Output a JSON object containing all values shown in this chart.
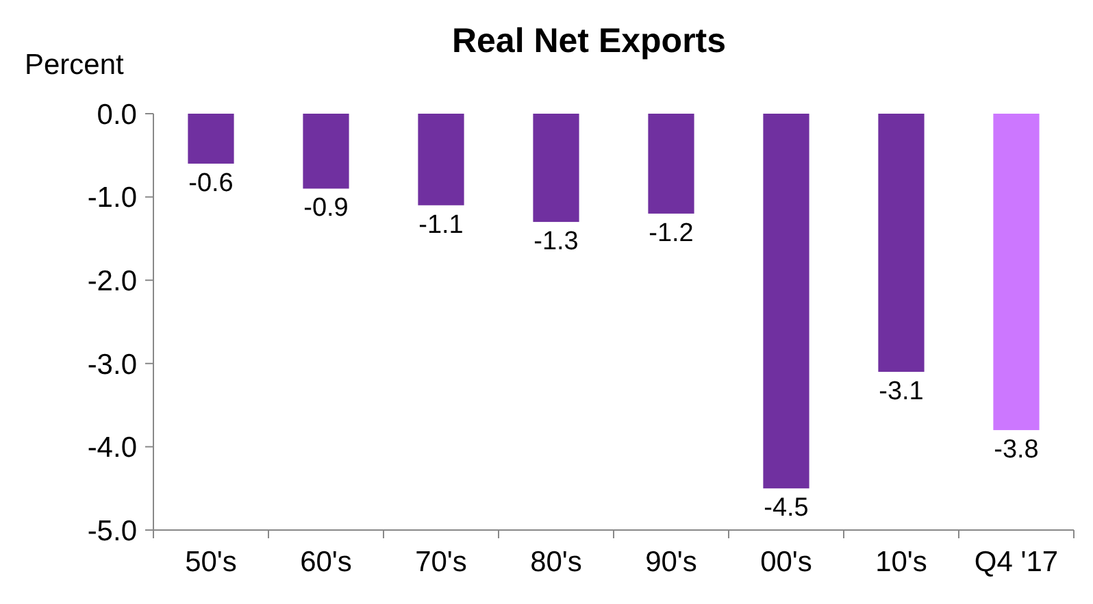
{
  "chart_data": {
    "type": "bar",
    "title": "Real Net Exports",
    "ylabel": "Percent",
    "categories": [
      "50's",
      "60's",
      "70's",
      "80's",
      "90's",
      "00's",
      "10's",
      "Q4 '17"
    ],
    "values": [
      -0.6,
      -0.9,
      -1.1,
      -1.3,
      -1.2,
      -4.5,
      -3.1,
      -3.8
    ],
    "colors": [
      "#7030a0",
      "#7030a0",
      "#7030a0",
      "#7030a0",
      "#7030a0",
      "#7030a0",
      "#7030a0",
      "#cc77ff"
    ],
    "ylim": [
      -5,
      0
    ],
    "yticks": [
      {
        "value": 0,
        "label": "0.0"
      },
      {
        "value": -1,
        "label": "-1.0"
      },
      {
        "value": -2,
        "label": "-2.0"
      },
      {
        "value": -3,
        "label": "-3.0"
      },
      {
        "value": -4,
        "label": "-4.0"
      },
      {
        "value": -5,
        "label": "-5.0"
      }
    ],
    "data_labels": true,
    "grid": false
  }
}
